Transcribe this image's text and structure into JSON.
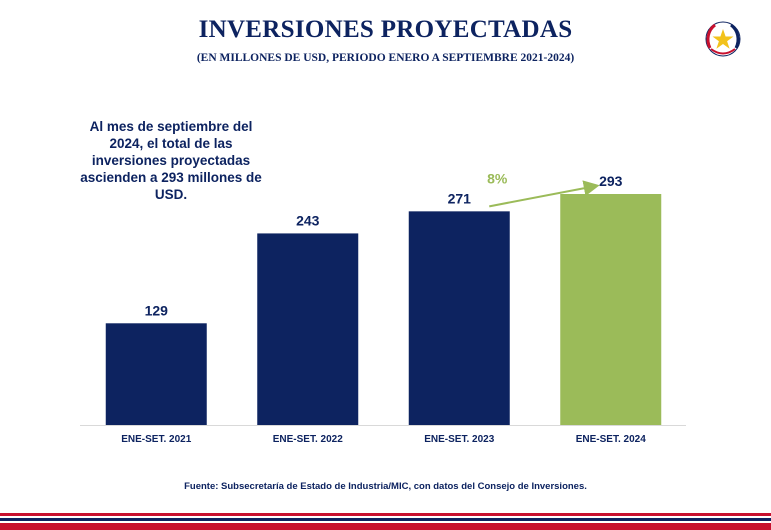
{
  "header": {
    "title": "INVERSIONES PROYECTADAS",
    "subtitle": "(EN MILLONES DE USD, PERIODO ENERO A SEPTIEMBRE 2021-2024)"
  },
  "logo": {
    "icon": "paraguay-seal-icon"
  },
  "note": {
    "lines": [
      "Al mes de septiembre del",
      "2024, el total de las",
      "inversiones proyectadas",
      "ascienden a 293 millones de",
      "USD."
    ]
  },
  "chart_data": {
    "type": "bar",
    "title": "INVERSIONES PROYECTADAS",
    "subtitle": "(EN MILLONES DE USD, PERIODO ENERO A SEPTIEMBRE 2021-2024)",
    "categories": [
      "ENE-SET. 2021",
      "ENE-SET. 2022",
      "ENE-SET. 2023",
      "ENE-SET. 2024"
    ],
    "values": [
      129,
      243,
      271,
      293
    ],
    "value_labels": [
      "129",
      "243",
      "271",
      "293"
    ],
    "bar_colors": [
      "#0d2360",
      "#0d2360",
      "#0d2360",
      "#9bbb59"
    ],
    "annotation": {
      "text": "8%",
      "from_category": "ENE-SET. 2023",
      "to_category": "ENE-SET. 2024",
      "color": "#9bbb59"
    },
    "xlabel": "",
    "ylabel": "",
    "ylim": [
      0,
      293
    ],
    "grid": false,
    "legend": "none"
  },
  "footer": {
    "source": "Fuente: Subsecretaría de Estado de Industria/MIC, con datos del Consejo de Inversiones."
  },
  "colors": {
    "navy": "#0d2360",
    "green": "#9bbb59",
    "red": "#c8102e"
  }
}
